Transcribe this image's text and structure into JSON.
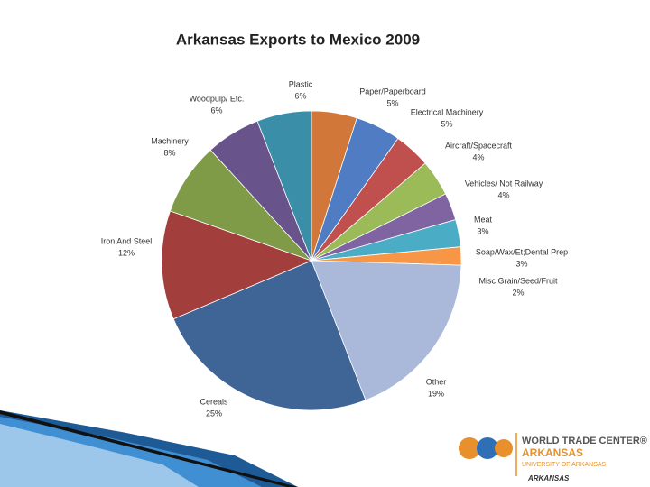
{
  "chart_data": {
    "type": "pie",
    "title": "Arkansas Exports to Mexico 2009",
    "categories": [
      "Paper/Paperboard",
      "Electrical Machinery",
      "Aircraft/Spacecraft",
      "Vehicles/ Not Railway",
      "Meat",
      "Soap/Wax/Et;Dental Prep",
      "Misc Grain/Seed/Fruit",
      "Other",
      "Cereals",
      "Iron And Steel",
      "Machinery",
      "Woodpulp/ Etc.",
      "Plastic"
    ],
    "values": [
      5,
      5,
      4,
      4,
      3,
      3,
      2,
      19,
      25,
      12,
      8,
      6,
      6
    ],
    "value_labels": [
      "5%",
      "5%",
      "4%",
      "4%",
      "3%",
      "3%",
      "2%",
      "19%",
      "25%",
      "12%",
      "8%",
      "6%",
      "6%"
    ],
    "colors": [
      "#d2773a",
      "#4f7cc2",
      "#c0504d",
      "#9bbb59",
      "#8064a2",
      "#4bacc6",
      "#f79646",
      "#aab9d9",
      "#3f6496",
      "#a23f3d",
      "#7f9b47",
      "#68538a",
      "#3a8ea8"
    ]
  },
  "logo": {
    "line1": "WORLD TRADE CENTER®",
    "line2": "ARKANSAS",
    "line3": "UNIVERSITY OF ARKANSAS",
    "line4": "ARKANSAS"
  }
}
